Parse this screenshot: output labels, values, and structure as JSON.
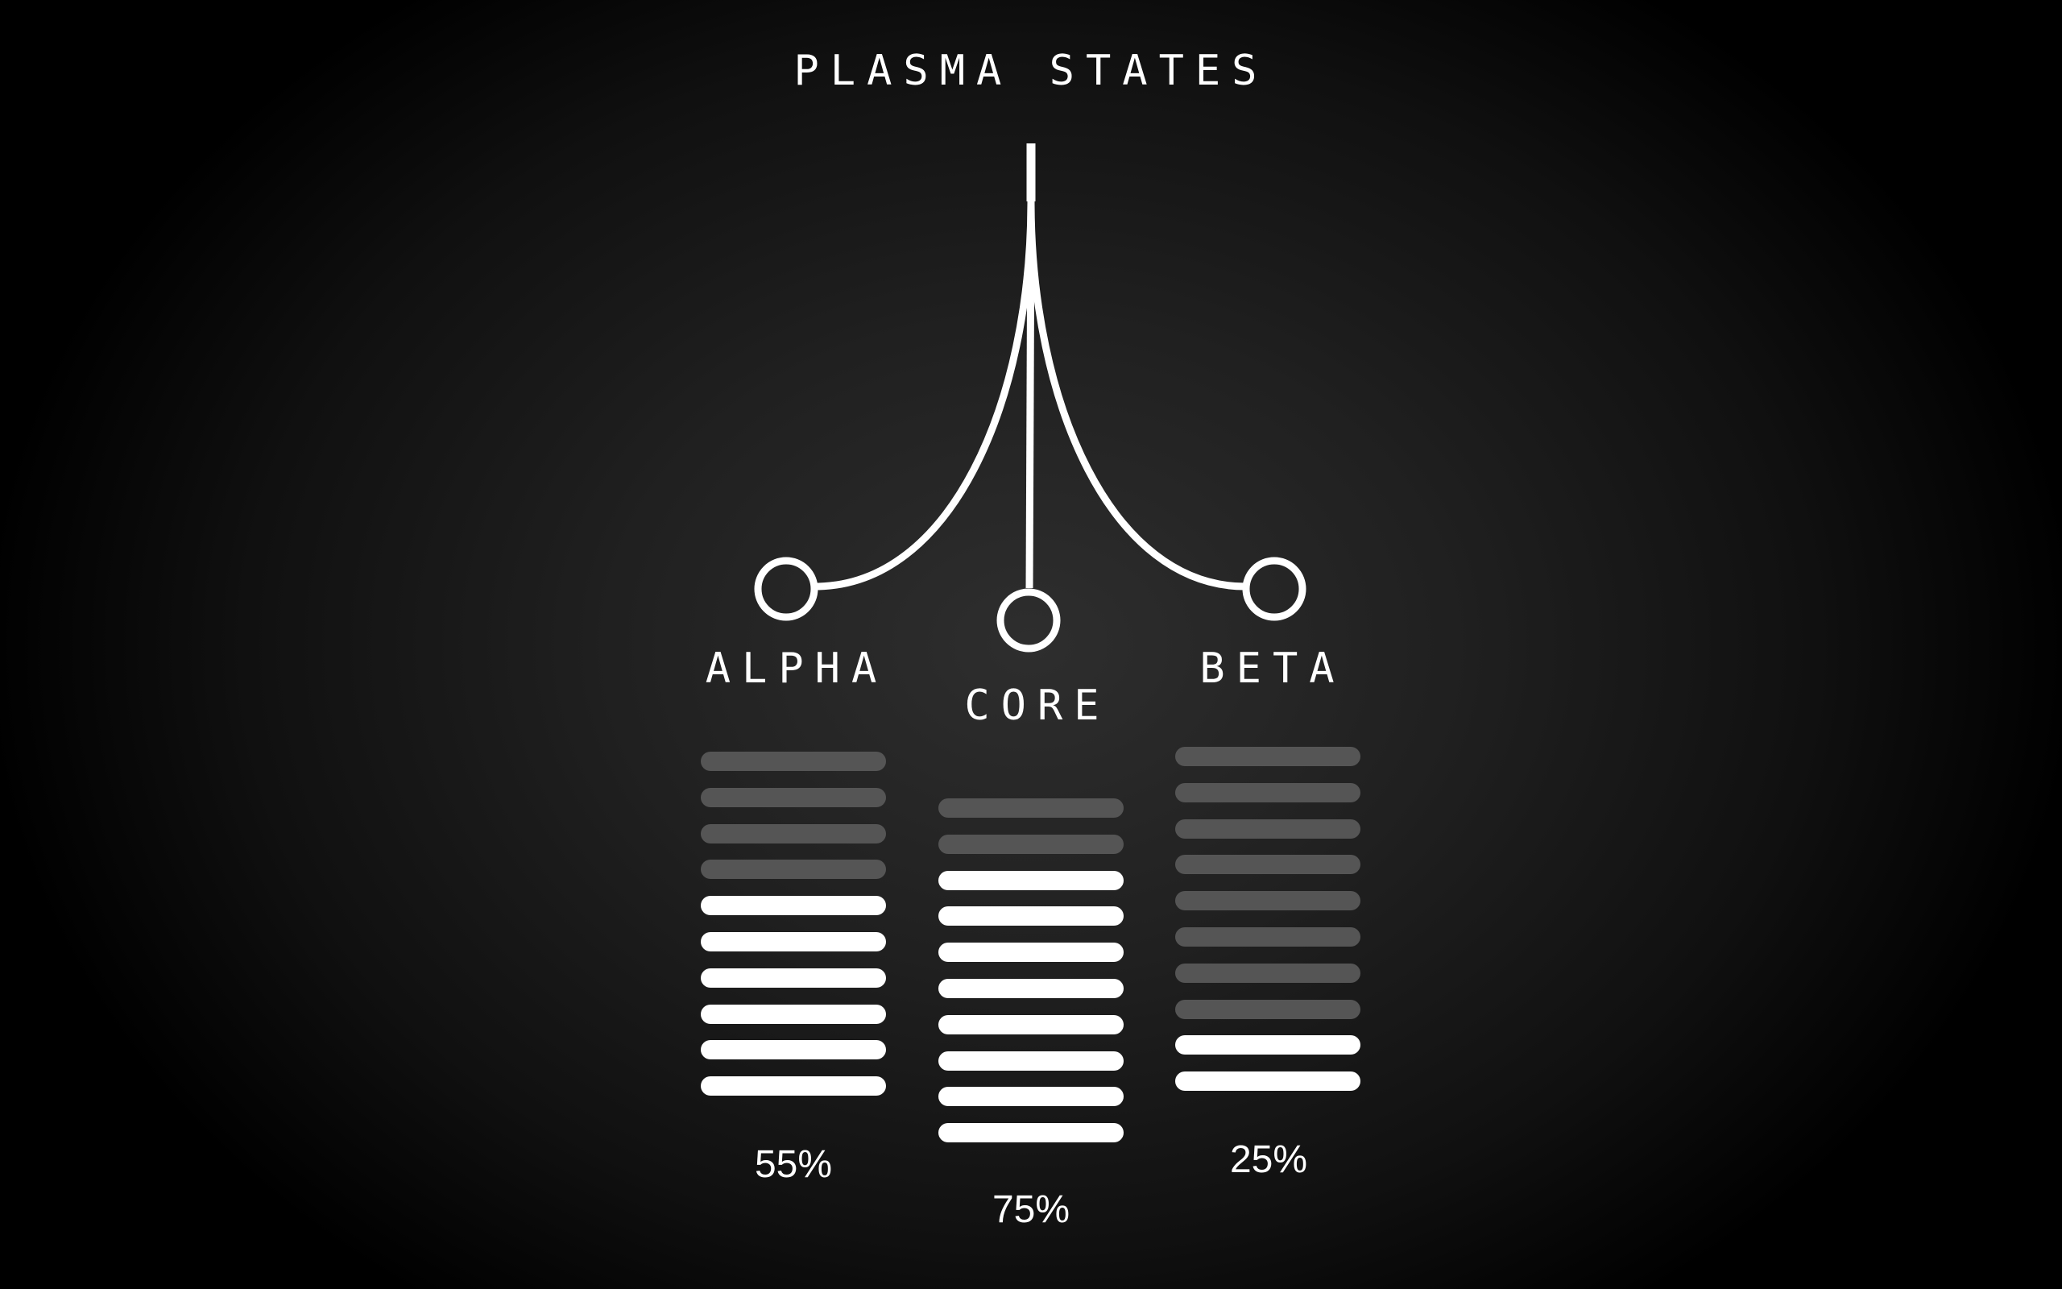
{
  "title": "PLASMA STATES",
  "colors": {
    "filled": "#ffffff",
    "empty": "#555555",
    "background": "#1c1c1c"
  },
  "nodes": [
    {
      "key": "alpha",
      "label": "ALPHA",
      "percent_label": "55%",
      "total_segments": 10,
      "filled_segments": 6
    },
    {
      "key": "core",
      "label": "CORE",
      "percent_label": "75%",
      "total_segments": 10,
      "filled_segments": 8
    },
    {
      "key": "beta",
      "label": "BETA",
      "percent_label": "25%",
      "total_segments": 10,
      "filled_segments": 2
    }
  ]
}
